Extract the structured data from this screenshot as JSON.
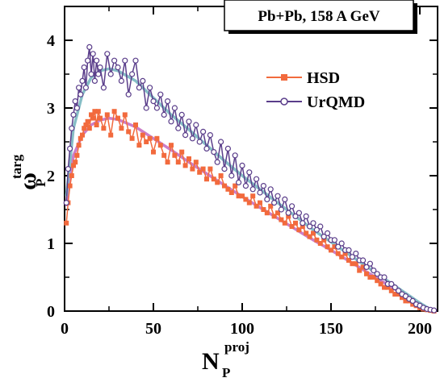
{
  "chart_data": {
    "type": "line",
    "title": "Pb+Pb, 158 A GeV",
    "xlabel": {
      "main": "N",
      "sub": "P",
      "sup": "proj"
    },
    "ylabel": {
      "main": "ω",
      "sub": "P",
      "sup": "targ"
    },
    "xlim": [
      0,
      210
    ],
    "ylim": [
      0,
      4.5
    ],
    "x_ticks": [
      0,
      50,
      100,
      150,
      200
    ],
    "y_ticks": [
      0,
      1,
      2,
      3,
      4
    ],
    "legend_position": "top-right",
    "series": [
      {
        "name": "HSD",
        "color": "#f26a3d",
        "marker": "square",
        "x": [
          1,
          2,
          3,
          4,
          5,
          6,
          7,
          8,
          9,
          10,
          11,
          12,
          13,
          14,
          15,
          16,
          17,
          18,
          19,
          20,
          22,
          24,
          26,
          28,
          30,
          32,
          34,
          36,
          38,
          40,
          42,
          44,
          46,
          48,
          50,
          52,
          54,
          56,
          58,
          60,
          62,
          64,
          66,
          68,
          70,
          72,
          74,
          76,
          78,
          80,
          82,
          84,
          86,
          88,
          90,
          92,
          94,
          96,
          98,
          100,
          102,
          104,
          106,
          108,
          110,
          112,
          114,
          116,
          118,
          120,
          122,
          124,
          126,
          128,
          130,
          132,
          134,
          136,
          138,
          140,
          142,
          144,
          146,
          148,
          150,
          152,
          154,
          156,
          158,
          160,
          162,
          164,
          166,
          168,
          170,
          172,
          174,
          176,
          178,
          180,
          182,
          184,
          186,
          188,
          190,
          192,
          194,
          196,
          198,
          200,
          202,
          204,
          206,
          208
        ],
        "values": [
          1.3,
          1.6,
          1.85,
          2.0,
          2.15,
          2.2,
          2.3,
          2.45,
          2.55,
          2.6,
          2.7,
          2.75,
          2.8,
          2.7,
          2.9,
          2.85,
          2.95,
          2.75,
          2.95,
          2.85,
          2.7,
          2.9,
          2.6,
          2.95,
          2.85,
          2.7,
          2.9,
          2.65,
          2.55,
          2.75,
          2.45,
          2.6,
          2.5,
          2.55,
          2.35,
          2.55,
          2.45,
          2.3,
          2.2,
          2.45,
          2.3,
          2.2,
          2.35,
          2.15,
          2.25,
          2.1,
          2.2,
          2.05,
          2.1,
          1.95,
          2.1,
          1.95,
          1.9,
          2.0,
          1.85,
          1.8,
          1.75,
          1.85,
          1.7,
          1.7,
          1.65,
          1.6,
          1.7,
          1.55,
          1.6,
          1.5,
          1.45,
          1.55,
          1.4,
          1.45,
          1.35,
          1.3,
          1.4,
          1.25,
          1.3,
          1.2,
          1.25,
          1.15,
          1.1,
          1.15,
          1.05,
          1.0,
          1.05,
          0.95,
          0.9,
          0.95,
          0.85,
          0.8,
          0.85,
          0.75,
          0.7,
          0.7,
          0.6,
          0.65,
          0.55,
          0.5,
          0.5,
          0.45,
          0.4,
          0.35,
          0.35,
          0.3,
          0.25,
          0.25,
          0.2,
          0.15,
          0.15,
          0.1,
          0.08,
          0.05,
          0.03,
          0.02,
          0.01,
          0.0
        ]
      },
      {
        "name": "UrQMD",
        "color": "#5a3d8a",
        "marker": "circle",
        "x": [
          1,
          2,
          3,
          4,
          5,
          6,
          7,
          8,
          9,
          10,
          11,
          12,
          13,
          14,
          15,
          16,
          17,
          18,
          19,
          20,
          22,
          24,
          26,
          28,
          30,
          32,
          34,
          36,
          38,
          40,
          42,
          44,
          46,
          48,
          50,
          52,
          54,
          56,
          58,
          60,
          62,
          64,
          66,
          68,
          70,
          72,
          74,
          76,
          78,
          80,
          82,
          84,
          86,
          88,
          90,
          92,
          94,
          96,
          98,
          100,
          102,
          104,
          106,
          108,
          110,
          112,
          114,
          116,
          118,
          120,
          122,
          124,
          126,
          128,
          130,
          132,
          134,
          136,
          138,
          140,
          142,
          144,
          146,
          148,
          150,
          152,
          154,
          156,
          158,
          160,
          162,
          164,
          166,
          168,
          170,
          172,
          174,
          176,
          178,
          180,
          182,
          184,
          186,
          188,
          190,
          192,
          194,
          196,
          198,
          200,
          202,
          204,
          206,
          208
        ],
        "values": [
          1.6,
          2.1,
          2.4,
          2.7,
          2.9,
          3.1,
          3.0,
          3.3,
          3.2,
          3.4,
          3.6,
          3.3,
          3.7,
          3.9,
          3.5,
          3.8,
          3.4,
          3.7,
          3.5,
          3.6,
          3.3,
          3.8,
          3.5,
          3.7,
          3.6,
          3.4,
          3.7,
          3.2,
          3.5,
          3.7,
          3.3,
          3.4,
          3.0,
          3.3,
          3.1,
          3.0,
          3.2,
          2.9,
          3.1,
          2.8,
          3.0,
          2.7,
          2.9,
          2.6,
          2.8,
          2.55,
          2.75,
          2.5,
          2.65,
          2.4,
          2.6,
          2.35,
          2.2,
          2.5,
          2.1,
          2.4,
          2.0,
          2.3,
          1.9,
          2.15,
          1.85,
          2.05,
          1.8,
          1.95,
          1.75,
          1.85,
          1.65,
          1.8,
          1.6,
          1.7,
          1.5,
          1.65,
          1.45,
          1.55,
          1.4,
          1.45,
          1.3,
          1.4,
          1.25,
          1.3,
          1.2,
          1.25,
          1.1,
          1.15,
          1.05,
          1.05,
          0.95,
          1.0,
          0.9,
          0.9,
          0.8,
          0.85,
          0.75,
          0.75,
          0.65,
          0.7,
          0.6,
          0.55,
          0.5,
          0.5,
          0.4,
          0.4,
          0.35,
          0.3,
          0.25,
          0.22,
          0.18,
          0.15,
          0.1,
          0.08,
          0.05,
          0.03,
          0.02,
          0.01
        ]
      }
    ],
    "smooth_curves": [
      {
        "color": "#cc7ec8",
        "x": [
          1,
          5,
          10,
          15,
          20,
          25,
          30,
          40,
          50,
          60,
          70,
          80,
          90,
          100,
          110,
          120,
          130,
          140,
          150,
          160,
          170,
          180,
          190,
          200,
          205,
          208
        ],
        "values": [
          1.55,
          2.3,
          2.6,
          2.75,
          2.82,
          2.85,
          2.83,
          2.72,
          2.55,
          2.38,
          2.2,
          2.03,
          1.86,
          1.69,
          1.53,
          1.37,
          1.21,
          1.05,
          0.9,
          0.74,
          0.58,
          0.42,
          0.26,
          0.1,
          0.03,
          0.01
        ]
      },
      {
        "color": "#86bec6",
        "x": [
          1,
          5,
          10,
          15,
          20,
          25,
          30,
          40,
          50,
          60,
          70,
          80,
          90,
          100,
          110,
          120,
          130,
          140,
          150,
          160,
          170,
          180,
          190,
          200,
          205,
          208
        ],
        "values": [
          1.7,
          2.7,
          3.2,
          3.45,
          3.55,
          3.58,
          3.55,
          3.4,
          3.15,
          2.9,
          2.68,
          2.45,
          2.22,
          2.0,
          1.8,
          1.6,
          1.4,
          1.2,
          1.02,
          0.84,
          0.66,
          0.48,
          0.3,
          0.12,
          0.04,
          0.01
        ]
      }
    ]
  }
}
